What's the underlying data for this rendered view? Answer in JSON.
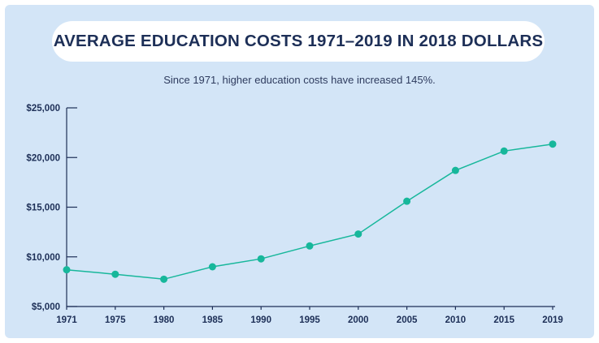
{
  "chart_data": {
    "type": "line",
    "title": "AVERAGE EDUCATION COSTS 1971–2019 IN 2018 DOLLARS",
    "subtitle": "Since 1971, higher education costs have increased 145%.",
    "xlabel": "",
    "ylabel": "",
    "categories": [
      "1971",
      "1975",
      "1980",
      "1985",
      "1990",
      "1995",
      "2000",
      "2005",
      "2010",
      "2015",
      "2019"
    ],
    "series": [
      {
        "values": [
          8700,
          8250,
          7750,
          9000,
          9800,
          11100,
          12300,
          15600,
          18700,
          20650,
          21350
        ]
      }
    ],
    "ylim": [
      5000,
      25000
    ],
    "yticks": [
      5000,
      10000,
      15000,
      20000,
      25000
    ],
    "ytick_labels": [
      "$5,000",
      "$10,000",
      "$15,000",
      "$20,000",
      "$25,000"
    ],
    "grid": false,
    "colors": {
      "line": "#17b79b",
      "marker": "#17b79b",
      "axis": "#1d2f57",
      "background": "#d3e5f7",
      "title": "#1d2f57"
    }
  }
}
